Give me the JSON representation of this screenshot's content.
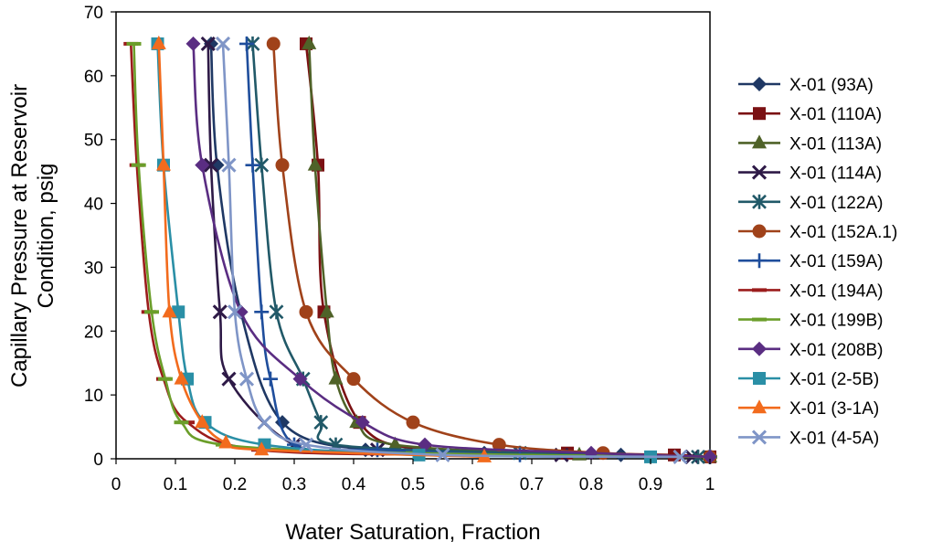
{
  "chart_data": {
    "type": "line",
    "title": "",
    "xlabel": "Water Saturation, Fraction",
    "ylabel_line1": "Capillary Pressure at Reservoir",
    "ylabel_line2": "Condition, psig",
    "xlim": [
      0,
      1
    ],
    "ylim": [
      0,
      70
    ],
    "x_ticks": [
      "0",
      "0.1",
      "0.2",
      "0.3",
      "0.4",
      "0.5",
      "0.6",
      "0.7",
      "0.8",
      "0.9",
      "1"
    ],
    "y_ticks": [
      "0",
      "10",
      "20",
      "30",
      "40",
      "50",
      "60",
      "70"
    ],
    "grid": false,
    "legend_position": "right",
    "series": [
      {
        "name": "X-01 (93A)",
        "color": "#1f3864",
        "marker": "diamond",
        "x": [
          0.16,
          0.17,
          0.21,
          0.28,
          0.42,
          0.62,
          0.85,
          1.0
        ],
        "y": [
          65,
          46,
          23,
          5.7,
          1.4,
          0.9,
          0.6,
          0.3
        ]
      },
      {
        "name": "X-01 (110A)",
        "color": "#7b1113",
        "marker": "square",
        "x": [
          0.32,
          0.34,
          0.35,
          0.41,
          0.52,
          0.76,
          0.94,
          1.0
        ],
        "y": [
          65,
          46,
          23,
          5.7,
          1.4,
          0.9,
          0.6,
          0.3
        ]
      },
      {
        "name": "X-01 (113A)",
        "color": "#4f6228",
        "marker": "triangle",
        "x": [
          0.325,
          0.335,
          0.355,
          0.37,
          0.405,
          0.47,
          0.78,
          1.0
        ],
        "y": [
          65,
          46,
          23,
          12.5,
          5.7,
          2.2,
          0.6,
          0.3
        ]
      },
      {
        "name": "X-01 (114A)",
        "color": "#2e1a47",
        "marker": "x",
        "x": [
          0.155,
          0.16,
          0.175,
          0.19,
          0.3,
          0.44,
          0.75,
          0.97
        ],
        "y": [
          65,
          46,
          23,
          12.5,
          2.2,
          1.4,
          0.6,
          0.3
        ]
      },
      {
        "name": "X-01 (122A)",
        "color": "#215968",
        "marker": "star",
        "x": [
          0.23,
          0.245,
          0.27,
          0.315,
          0.345,
          0.37,
          0.68,
          0.98
        ],
        "y": [
          65,
          46,
          23,
          12.5,
          5.7,
          2.2,
          0.9,
          0.3
        ]
      },
      {
        "name": "X-01 (152A.1)",
        "color": "#a0421a",
        "marker": "circle",
        "x": [
          0.265,
          0.28,
          0.32,
          0.4,
          0.5,
          0.645,
          0.82,
          1.0
        ],
        "y": [
          65,
          46,
          23,
          12.5,
          5.7,
          2.2,
          0.9,
          0.3
        ]
      },
      {
        "name": "X-01 (159A)",
        "color": "#1f4e9c",
        "marker": "plus",
        "x": [
          0.22,
          0.23,
          0.245,
          0.26,
          0.3,
          0.44,
          0.68,
          1.0
        ],
        "y": [
          65,
          46,
          23,
          12.5,
          2.2,
          1.4,
          0.6,
          0.3
        ]
      },
      {
        "name": "X-01 (194A)",
        "color": "#9b1c1c",
        "marker": "dash",
        "x": [
          0.025,
          0.035,
          0.055,
          0.08,
          0.12,
          0.24,
          0.6,
          1.0
        ],
        "y": [
          65,
          46,
          23,
          12.5,
          5.7,
          1.4,
          0.6,
          0.3
        ]
      },
      {
        "name": "X-01 (199B)",
        "color": "#6b9e2a",
        "marker": "dash",
        "x": [
          0.03,
          0.038,
          0.06,
          0.083,
          0.11,
          0.18,
          0.5,
          1.0
        ],
        "y": [
          65,
          46,
          23,
          12.5,
          5.7,
          2.2,
          0.9,
          0.3
        ]
      },
      {
        "name": "X-01 (208B)",
        "color": "#5a2d82",
        "marker": "diamond",
        "x": [
          0.13,
          0.145,
          0.21,
          0.31,
          0.415,
          0.52,
          0.8,
          1.0
        ],
        "y": [
          65,
          46,
          23,
          12.5,
          5.7,
          2.2,
          0.9,
          0.3
        ]
      },
      {
        "name": "X-01 (2-5B)",
        "color": "#2a8fa6",
        "marker": "square",
        "x": [
          0.07,
          0.08,
          0.105,
          0.12,
          0.15,
          0.25,
          0.51,
          0.9
        ],
        "y": [
          65,
          46,
          23,
          12.5,
          5.7,
          2.2,
          0.6,
          0.3
        ]
      },
      {
        "name": "X-01 (3-1A)",
        "color": "#f26b1d",
        "marker": "triangle",
        "x": [
          0.072,
          0.08,
          0.09,
          0.11,
          0.145,
          0.185,
          0.245,
          0.62
        ],
        "y": [
          65,
          46,
          23,
          12.5,
          5.7,
          2.5,
          1.4,
          0.3
        ]
      },
      {
        "name": "X-01 (4-5A)",
        "color": "#7f95c7",
        "marker": "x",
        "x": [
          0.18,
          0.19,
          0.2,
          0.22,
          0.25,
          0.32,
          0.55,
          0.95
        ],
        "y": [
          65,
          46,
          23,
          12.5,
          5.7,
          2.2,
          0.6,
          0.3
        ]
      }
    ]
  }
}
